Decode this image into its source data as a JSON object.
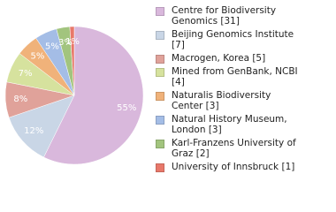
{
  "chart_data": {
    "type": "pie",
    "series": [
      {
        "name": "Centre for Biodiversity Genomics [31]",
        "color": "#d9b8dc",
        "values": [
          55
        ],
        "value_labels": [
          "55%"
        ]
      },
      {
        "name": "Beijing Genomics Institute [7]",
        "color": "#c9d6e6",
        "values": [
          12
        ],
        "value_labels": [
          "12%"
        ]
      },
      {
        "name": "Macrogen, Korea [5]",
        "color": "#e0a29a",
        "values": [
          8
        ],
        "value_labels": [
          "8%"
        ]
      },
      {
        "name": "Mined from GenBank, NCBI [4]",
        "color": "#d6e29e",
        "values": [
          7
        ],
        "value_labels": [
          "7%"
        ]
      },
      {
        "name": "Naturalis Biodiversity Center [3]",
        "color": "#f0b27a",
        "values": [
          5
        ],
        "value_labels": [
          "5%"
        ]
      },
      {
        "name": "Natural History Museum, London [3]",
        "color": "#a4bde6",
        "values": [
          5
        ],
        "value_labels": [
          "5%"
        ]
      },
      {
        "name": "Karl-Franzens University of Graz [2]",
        "color": "#a2c47e",
        "values": [
          3
        ],
        "value_labels": [
          "3%"
        ]
      },
      {
        "name": "University of Innsbruck [1]",
        "color": "#e8786a",
        "values": [
          1
        ],
        "value_labels": [
          "1%"
        ]
      }
    ]
  }
}
